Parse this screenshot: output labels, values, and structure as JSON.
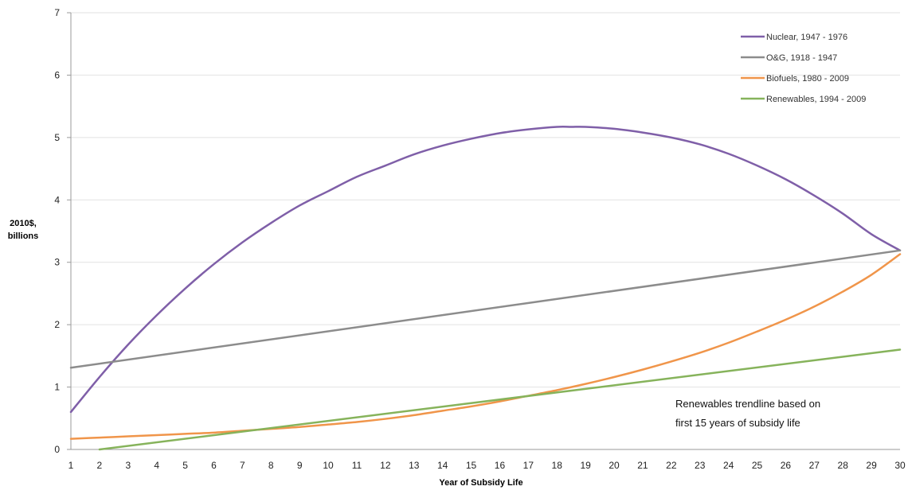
{
  "chart_data": {
    "type": "line",
    "title": "",
    "xlabel": "Year of Subsidy Life",
    "ylabel_lines": [
      "2010$,",
      "billions"
    ],
    "xlim": [
      1,
      30
    ],
    "ylim": [
      0,
      7
    ],
    "x_ticks": [
      1,
      2,
      3,
      4,
      5,
      6,
      7,
      8,
      9,
      10,
      11,
      12,
      13,
      14,
      15,
      16,
      17,
      18,
      19,
      20,
      21,
      22,
      23,
      24,
      25,
      26,
      27,
      28,
      29,
      30
    ],
    "y_ticks": [
      0,
      1,
      2,
      3,
      4,
      5,
      6,
      7
    ],
    "grid": "horizontal",
    "legend_position": "top-right",
    "annotation_lines": [
      "Renewables trendline based on",
      "first 15 years of subsidy life"
    ],
    "series": [
      {
        "name": "Nuclear, 1947 - 1976",
        "color": "#7f5fa8",
        "x": [
          1,
          2,
          3,
          4,
          5,
          6,
          7,
          8,
          9,
          10,
          11,
          12,
          13,
          14,
          15,
          16,
          17,
          18,
          18.5,
          19,
          20,
          21,
          22,
          23,
          24,
          25,
          26,
          27,
          28,
          29,
          30
        ],
        "values": [
          0.6,
          1.16,
          1.68,
          2.15,
          2.58,
          2.97,
          3.32,
          3.63,
          3.91,
          4.14,
          4.37,
          4.55,
          4.73,
          4.87,
          4.98,
          5.07,
          5.13,
          5.17,
          5.17,
          5.17,
          5.14,
          5.08,
          5.0,
          4.89,
          4.74,
          4.55,
          4.33,
          4.07,
          3.78,
          3.45,
          3.19
        ]
      },
      {
        "name": "O&G, 1918 - 1947",
        "color": "#8c8c8c",
        "x": [
          1,
          30
        ],
        "values": [
          1.31,
          3.19
        ]
      },
      {
        "name": "Biofuels, 1980 - 2009",
        "color": "#f0954a",
        "x": [
          1,
          2,
          3,
          4,
          5,
          6,
          7,
          8,
          9,
          10,
          11,
          12,
          13,
          14,
          15,
          16,
          17,
          18,
          19,
          20,
          21,
          22,
          23,
          24,
          25,
          26,
          27,
          28,
          29,
          30
        ],
        "values": [
          0.17,
          0.19,
          0.21,
          0.23,
          0.25,
          0.27,
          0.3,
          0.33,
          0.36,
          0.4,
          0.44,
          0.49,
          0.55,
          0.62,
          0.69,
          0.77,
          0.86,
          0.95,
          1.05,
          1.16,
          1.28,
          1.41,
          1.55,
          1.71,
          1.89,
          2.08,
          2.29,
          2.53,
          2.8,
          3.13
        ]
      },
      {
        "name": "Renewables, 1994 - 2009",
        "color": "#86b35b",
        "x": [
          2,
          30
        ],
        "values": [
          0.0,
          1.6
        ]
      }
    ]
  }
}
